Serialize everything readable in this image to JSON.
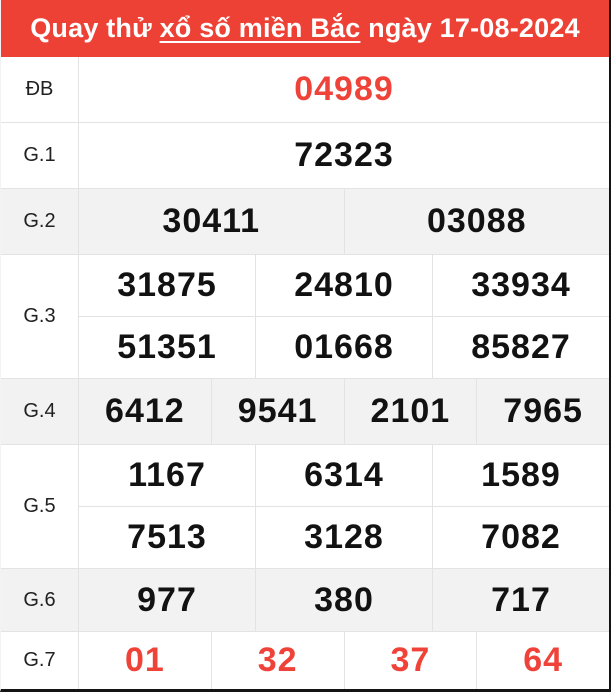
{
  "header": {
    "prefix": "Quay thử",
    "region": "xổ số miền Bắc",
    "suffix": "ngày 17-08-2024"
  },
  "colors": {
    "header_bg": "#ee4136",
    "header_text": "#ffffff",
    "number_red": "#ef4339",
    "digit_color": "#121212",
    "label_color": "#212121",
    "shaded_row": "#f2f2f2",
    "divider": "#e3e3e3"
  },
  "table": {
    "rows": [
      {
        "label": "ĐB",
        "highlight": true,
        "shaded": false,
        "lines": [
          [
            "04989"
          ]
        ]
      },
      {
        "label": "G.1",
        "highlight": false,
        "shaded": false,
        "lines": [
          [
            "72323"
          ]
        ]
      },
      {
        "label": "G.2",
        "highlight": false,
        "shaded": true,
        "lines": [
          [
            "30411",
            "03088"
          ]
        ]
      },
      {
        "label": "G.3",
        "highlight": false,
        "shaded": false,
        "lines": [
          [
            "31875",
            "24810",
            "33934"
          ],
          [
            "51351",
            "01668",
            "85827"
          ]
        ]
      },
      {
        "label": "G.4",
        "highlight": false,
        "shaded": true,
        "lines": [
          [
            "6412",
            "9541",
            "2101",
            "7965"
          ]
        ]
      },
      {
        "label": "G.5",
        "highlight": false,
        "shaded": false,
        "lines": [
          [
            "1167",
            "6314",
            "1589"
          ],
          [
            "7513",
            "3128",
            "7082"
          ]
        ]
      },
      {
        "label": "G.6",
        "highlight": false,
        "shaded": true,
        "lines": [
          [
            "977",
            "380",
            "717"
          ]
        ]
      },
      {
        "label": "G.7",
        "highlight": true,
        "shaded": false,
        "lines": [
          [
            "01",
            "32",
            "37",
            "64"
          ]
        ]
      }
    ]
  }
}
